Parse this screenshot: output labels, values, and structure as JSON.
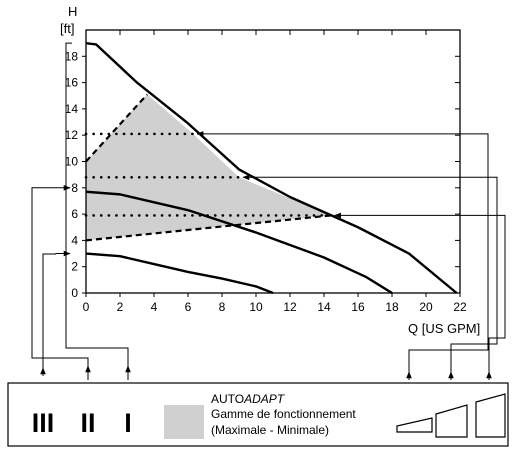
{
  "chart_data": {
    "type": "line",
    "x_label": "Q [US GPM]",
    "y_label_line1": "H",
    "y_label_line2": "[ft]",
    "xlim": [
      0,
      22
    ],
    "ylim": [
      0,
      20
    ],
    "x_ticks": [
      0,
      2,
      4,
      6,
      8,
      10,
      12,
      14,
      16,
      18,
      20,
      22
    ],
    "y_ticks": [
      0,
      2,
      4,
      6,
      8,
      10,
      12,
      14,
      16,
      18
    ],
    "series": [
      {
        "points": [
          [
            0,
            19
          ],
          [
            0.6,
            18.9
          ],
          [
            3,
            16
          ],
          [
            6,
            12.9
          ],
          [
            9,
            9.4
          ],
          [
            12,
            7.3
          ],
          [
            16,
            5
          ],
          [
            19,
            3
          ],
          [
            21.8,
            0
          ]
        ]
      },
      {
        "points": [
          [
            0,
            7.7
          ],
          [
            2,
            7.5
          ],
          [
            6,
            6.3
          ],
          [
            10,
            4.6
          ],
          [
            14,
            2.7
          ],
          [
            16.5,
            1.2
          ],
          [
            18,
            0
          ]
        ]
      },
      {
        "points": [
          [
            0,
            3
          ],
          [
            2,
            2.8
          ],
          [
            4,
            2.2
          ],
          [
            6,
            1.6
          ],
          [
            8,
            1.1
          ],
          [
            10,
            0.5
          ],
          [
            11,
            0
          ]
        ]
      }
    ],
    "autoadapt_region": [
      [
        0,
        10
      ],
      [
        3.6,
        15.1
      ],
      [
        6.3,
        12.1
      ],
      [
        9,
        8.8
      ],
      [
        14.4,
        5.9
      ],
      [
        0,
        4
      ]
    ],
    "autoadapt_boundary_dashed": [
      [
        [
          0,
          10
        ],
        [
          3.6,
          15.1
        ]
      ],
      [
        [
          0,
          4
        ],
        [
          14.4,
          5.9
        ]
      ]
    ],
    "setpoint_lines": [
      {
        "y": 12.1,
        "x_end": 6.3,
        "from": "setting-1-icon"
      },
      {
        "y": 8.8,
        "x_end": 9,
        "from": "setting-2-icon"
      },
      {
        "y": 5.9,
        "x_end": 14.4,
        "from": "setting-3-icon"
      }
    ],
    "speed_markers": [
      {
        "y": 19,
        "speed": "I"
      },
      {
        "y": 8,
        "speed": "II"
      },
      {
        "y": 3,
        "speed": "III"
      }
    ],
    "colors": {
      "region": "#d0d0d0",
      "line": "#000000"
    }
  },
  "legend": {
    "speeds": [
      "III",
      "II",
      "I"
    ],
    "autoadapt_prefix": "AUTO",
    "autoadapt_italic": "ADAPT",
    "range_line1": "Gamme de fonctionnement",
    "range_line2": "(Maximale - Minimale)",
    "swatch_color": "#d0d0d0",
    "setting_icons": [
      "setting-1-icon",
      "setting-2-icon",
      "setting-3-icon"
    ]
  }
}
